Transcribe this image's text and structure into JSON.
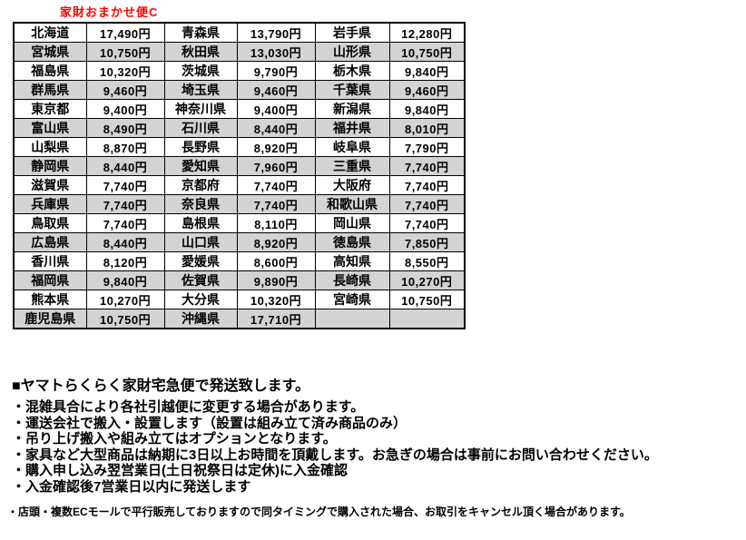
{
  "title": "家財おまかせ便C",
  "table": {
    "rows": [
      [
        "北海道",
        "17,490円",
        "青森県",
        "13,790円",
        "岩手県",
        "12,280円"
      ],
      [
        "宮城県",
        "10,750円",
        "秋田県",
        "13,030円",
        "山形県",
        "10,750円"
      ],
      [
        "福島県",
        "10,320円",
        "茨城県",
        "9,790円",
        "栃木県",
        "9,840円"
      ],
      [
        "群馬県",
        "9,460円",
        "埼玉県",
        "9,460円",
        "千葉県",
        "9,460円"
      ],
      [
        "東京都",
        "9,400円",
        "神奈川県",
        "9,400円",
        "新潟県",
        "9,840円"
      ],
      [
        "富山県",
        "8,490円",
        "石川県",
        "8,440円",
        "福井県",
        "8,010円"
      ],
      [
        "山梨県",
        "8,870円",
        "長野県",
        "8,920円",
        "岐阜県",
        "7,790円"
      ],
      [
        "静岡県",
        "8,440円",
        "愛知県",
        "7,960円",
        "三重県",
        "7,740円"
      ],
      [
        "滋賀県",
        "7,740円",
        "京都府",
        "7,740円",
        "大阪府",
        "7,740円"
      ],
      [
        "兵庫県",
        "7,740円",
        "奈良県",
        "7,740円",
        "和歌山県",
        "7,740円"
      ],
      [
        "鳥取県",
        "7,740円",
        "島根県",
        "8,110円",
        "岡山県",
        "7,740円"
      ],
      [
        "広島県",
        "8,440円",
        "山口県",
        "8,920円",
        "徳島県",
        "7,850円"
      ],
      [
        "香川県",
        "8,120円",
        "愛媛県",
        "8,600円",
        "高知県",
        "8,550円"
      ],
      [
        "福岡県",
        "9,840円",
        "佐賀県",
        "9,890円",
        "長崎県",
        "10,270円"
      ],
      [
        "熊本県",
        "10,270円",
        "大分県",
        "10,320円",
        "宮崎県",
        "10,750円"
      ],
      [
        "鹿児島県",
        "10,750円",
        "沖縄県",
        "17,710円",
        "",
        ""
      ]
    ]
  },
  "notes": {
    "heading": "■ヤマトらくらく家財宅急便で発送致します。",
    "bullets": [
      "・混雑具合により各社引越便に変更する場合があります。",
      "・運送会社で搬入・設置します（設置は組み立て済み商品のみ）",
      "・吊り上げ搬入や組み立てはオプションとなります。",
      "・家具など大型商品は納期に3日以上お時間を頂戴します。お急ぎの場合は事前にお問い合わせください。",
      "・購入申し込み翌営業日(土日祝祭日は定休)に入金確認",
      "・入金確認後7営業日以内に発送します"
    ],
    "footnote": "・店頭・複数ECモールで平行販売しておりますので同タイミングで購入された場合、お取引をキャンセル頂く場合があります。"
  },
  "colors": {
    "title_red": "#ff0000",
    "row_alt_gray": "#d3d3d3",
    "border_black": "#000000",
    "text_black": "#000000",
    "background_white": "#ffffff"
  }
}
